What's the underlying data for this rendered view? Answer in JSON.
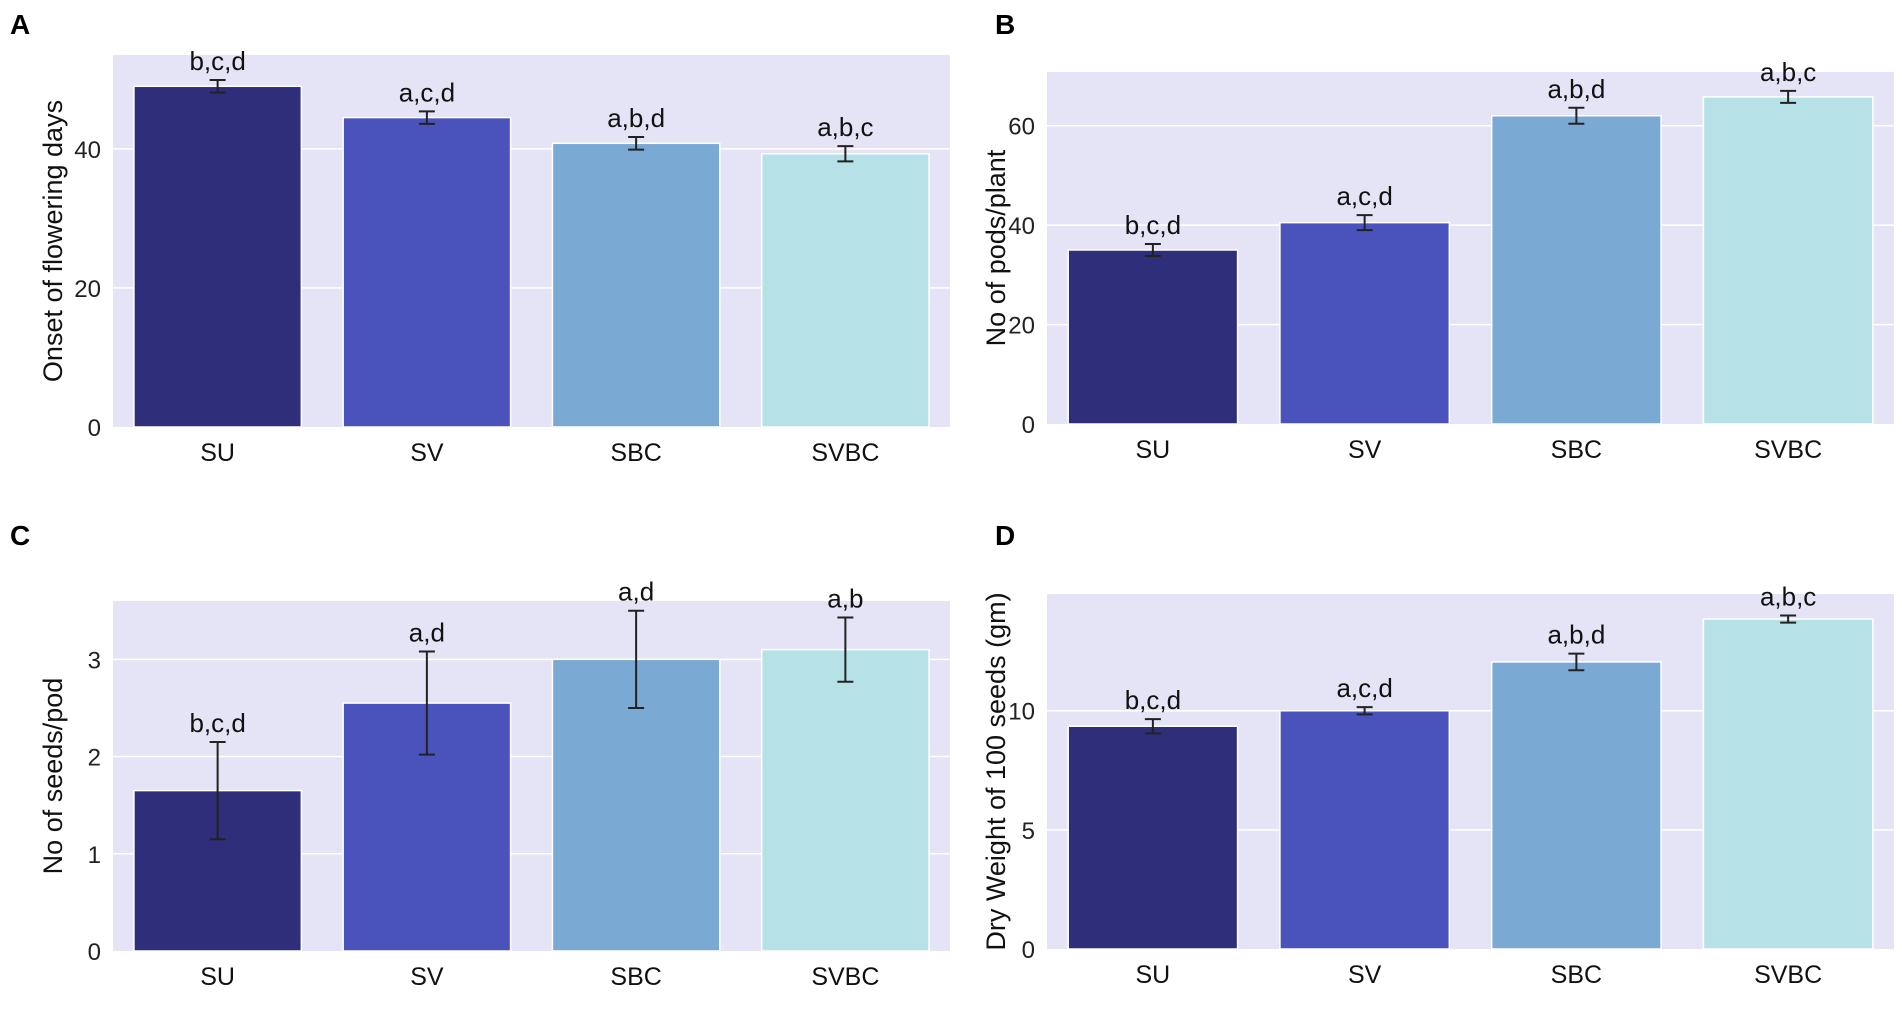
{
  "figure": {
    "categories": [
      "SU",
      "SV",
      "SBC",
      "SVBC"
    ],
    "bar_colors": [
      "#2e2e7a",
      "#4a52bb",
      "#7aaad3",
      "#b6e2e7"
    ],
    "plot_background": "#e4e4f6",
    "grid_color": "#ffffff",
    "errorbar_color": "#222222"
  },
  "chart_data": [
    {
      "panel": "A",
      "type": "bar",
      "title": "",
      "xlabel": "",
      "ylabel": "Onset of flowering days",
      "categories": [
        "SU",
        "SV",
        "SBC",
        "SVBC"
      ],
      "values": [
        49.0,
        44.5,
        40.8,
        39.3
      ],
      "errors": [
        0.9,
        0.9,
        0.9,
        1.1
      ],
      "annotations": [
        "b,c,d",
        "a,c,d",
        "a,b,d",
        "a,b,c"
      ],
      "ylim": [
        0,
        53.5
      ],
      "yticks": [
        0,
        20,
        40
      ],
      "grid": true
    },
    {
      "panel": "B",
      "type": "bar",
      "title": "",
      "xlabel": "",
      "ylabel": "No of pods/plant",
      "categories": [
        "SU",
        "SV",
        "SBC",
        "SVBC"
      ],
      "values": [
        35.0,
        40.5,
        62.0,
        65.8
      ],
      "errors": [
        1.2,
        1.5,
        1.6,
        1.2
      ],
      "annotations": [
        "b,c,d",
        "a,c,d",
        "a,b,d",
        "a,b,c"
      ],
      "ylim": [
        0,
        70.8
      ],
      "yticks": [
        0,
        20,
        40,
        60
      ],
      "grid": true
    },
    {
      "panel": "C",
      "type": "bar",
      "title": "",
      "xlabel": "",
      "ylabel": "No of seeds/pod",
      "categories": [
        "SU",
        "SV",
        "SBC",
        "SVBC"
      ],
      "values": [
        1.65,
        2.55,
        3.0,
        3.1
      ],
      "errors": [
        0.5,
        0.53,
        0.5,
        0.33
      ],
      "annotations": [
        "b,c,d",
        "a,d",
        "a,d",
        "a,b"
      ],
      "ylim": [
        0,
        3.6
      ],
      "yticks": [
        0,
        1,
        2,
        3
      ],
      "grid": true
    },
    {
      "panel": "D",
      "type": "bar",
      "title": "",
      "xlabel": "",
      "ylabel": "Dry Weight of 100 seeds (gm)",
      "categories": [
        "SU",
        "SV",
        "SBC",
        "SVBC"
      ],
      "values": [
        9.35,
        10.0,
        12.05,
        13.85
      ],
      "errors": [
        0.3,
        0.15,
        0.35,
        0.15
      ],
      "annotations": [
        "b,c,d",
        "a,c,d",
        "a,b,d",
        "a,b,c"
      ],
      "ylim": [
        0,
        14.9
      ],
      "yticks": [
        0,
        5,
        10
      ],
      "grid": true
    }
  ]
}
